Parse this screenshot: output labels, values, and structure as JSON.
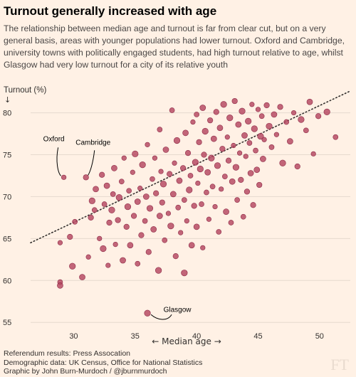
{
  "header": {
    "title": "Turnout generally increased with age",
    "subtitle": "The relationship between median age and turnout is far from clear cut, but on a very general basis, areas with younger populations had lower turnout. Oxford and Cambridge, university towns with politically engaged students, had high turnout relative to age, whilst Glasgow had very low turnout for a city of its relative youth"
  },
  "footer": {
    "line1": "Referendum results: Press Assocation",
    "line2": "Demographic data: UK Census, Office for National Statistics",
    "line3": "Graphic by John Burn-Murdoch / @jburnmurdoch"
  },
  "watermark": "FT",
  "colors": {
    "dot": "#b5465f",
    "dot_stroke": "#8e2b47",
    "grid": "#e6d9ce",
    "text": "#33302e"
  },
  "chart_data": {
    "type": "scatter",
    "xlabel": "← Median age →",
    "ylabel": "Turnout (%)",
    "ylabel_arrow": "↓",
    "xlim": [
      26.5,
      52.5
    ],
    "ylim": [
      54,
      82
    ],
    "xticks": [
      30,
      35,
      40,
      45,
      50
    ],
    "yticks": [
      55,
      60,
      65,
      70,
      75,
      80
    ],
    "grid": "horizontal",
    "trendline": {
      "x": [
        26.5,
        52.5
      ],
      "y": [
        64.5,
        82.6
      ]
    },
    "annotations": [
      {
        "label": "Oxford",
        "x": 29.2,
        "y": 72.3
      },
      {
        "label": "Cambridge",
        "x": 31.0,
        "y": 72.3
      },
      {
        "label": "Glasgow",
        "x": 36.0,
        "y": 56.1
      }
    ],
    "points": [
      [
        29.2,
        72.3
      ],
      [
        31.0,
        72.3
      ],
      [
        36.0,
        56.1
      ],
      [
        28.9,
        59.8
      ],
      [
        28.9,
        59.4
      ],
      [
        28.9,
        64.5
      ],
      [
        29.7,
        65.2
      ],
      [
        29.9,
        61.7
      ],
      [
        30.1,
        67.0
      ],
      [
        30.7,
        60.4
      ],
      [
        31.2,
        62.8
      ],
      [
        31.4,
        67.5
      ],
      [
        31.5,
        69.5
      ],
      [
        31.7,
        68.4
      ],
      [
        31.8,
        70.9
      ],
      [
        32.1,
        65.0
      ],
      [
        32.3,
        72.6
      ],
      [
        32.4,
        63.8
      ],
      [
        32.5,
        69.1
      ],
      [
        32.7,
        71.3
      ],
      [
        32.8,
        61.8
      ],
      [
        32.9,
        66.9
      ],
      [
        33.1,
        68.4
      ],
      [
        33.2,
        70.3
      ],
      [
        33.3,
        73.4
      ],
      [
        33.4,
        64.3
      ],
      [
        33.6,
        67.2
      ],
      [
        33.7,
        69.9
      ],
      [
        33.9,
        71.8
      ],
      [
        34.0,
        62.4
      ],
      [
        34.1,
        74.6
      ],
      [
        34.3,
        66.4
      ],
      [
        34.4,
        68.8
      ],
      [
        34.5,
        70.7
      ],
      [
        34.6,
        64.2
      ],
      [
        34.8,
        72.9
      ],
      [
        34.9,
        67.7
      ],
      [
        35.0,
        75.1
      ],
      [
        35.2,
        62.0
      ],
      [
        35.2,
        69.4
      ],
      [
        35.4,
        71.0
      ],
      [
        35.5,
        65.4
      ],
      [
        35.6,
        73.8
      ],
      [
        35.8,
        67.1
      ],
      [
        35.9,
        70.0
      ],
      [
        36.0,
        76.2
      ],
      [
        36.1,
        63.4
      ],
      [
        36.2,
        68.6
      ],
      [
        36.4,
        72.1
      ],
      [
        36.5,
        66.1
      ],
      [
        36.6,
        74.6
      ],
      [
        36.7,
        70.4
      ],
      [
        36.9,
        61.2
      ],
      [
        37.0,
        78.0
      ],
      [
        37.0,
        67.7
      ],
      [
        37.1,
        73.0
      ],
      [
        37.2,
        69.3
      ],
      [
        37.3,
        71.5
      ],
      [
        37.4,
        64.8
      ],
      [
        37.5,
        75.6
      ],
      [
        37.7,
        68.0
      ],
      [
        37.8,
        72.7
      ],
      [
        37.9,
        66.5
      ],
      [
        38.0,
        80.3
      ],
      [
        38.1,
        70.3
      ],
      [
        38.2,
        74.0
      ],
      [
        38.3,
        62.9
      ],
      [
        38.4,
        76.7
      ],
      [
        38.5,
        68.7
      ],
      [
        38.6,
        71.9
      ],
      [
        38.7,
        65.7
      ],
      [
        38.9,
        73.4
      ],
      [
        39.0,
        60.9
      ],
      [
        39.0,
        69.6
      ],
      [
        39.1,
        77.6
      ],
      [
        39.2,
        67.1
      ],
      [
        39.3,
        75.2
      ],
      [
        39.4,
        70.8
      ],
      [
        39.5,
        72.5
      ],
      [
        39.6,
        64.2
      ],
      [
        39.7,
        78.9
      ],
      [
        39.8,
        68.9
      ],
      [
        39.9,
        74.1
      ],
      [
        40.0,
        79.8
      ],
      [
        40.0,
        66.4
      ],
      [
        40.1,
        71.6
      ],
      [
        40.2,
        76.5
      ],
      [
        40.3,
        73.3
      ],
      [
        40.4,
        69.1
      ],
      [
        40.5,
        80.6
      ],
      [
        40.5,
        63.9
      ],
      [
        40.6,
        75.0
      ],
      [
        40.7,
        77.8
      ],
      [
        40.8,
        70.5
      ],
      [
        40.9,
        72.9
      ],
      [
        41.0,
        67.3
      ],
      [
        41.1,
        79.1
      ],
      [
        41.2,
        74.6
      ],
      [
        41.3,
        71.2
      ],
      [
        41.4,
        76.9
      ],
      [
        41.5,
        68.8
      ],
      [
        41.6,
        80.1
      ],
      [
        41.7,
        73.7
      ],
      [
        41.8,
        65.8
      ],
      [
        41.9,
        78.2
      ],
      [
        42.0,
        70.9
      ],
      [
        42.1,
        75.7
      ],
      [
        42.2,
        81.0
      ],
      [
        42.3,
        72.4
      ],
      [
        42.4,
        68.2
      ],
      [
        42.5,
        77.1
      ],
      [
        42.6,
        74.3
      ],
      [
        42.7,
        79.4
      ],
      [
        42.8,
        66.9
      ],
      [
        42.9,
        71.8
      ],
      [
        43.0,
        76.1
      ],
      [
        43.1,
        81.4
      ],
      [
        43.2,
        73.5
      ],
      [
        43.3,
        69.6
      ],
      [
        43.4,
        78.6
      ],
      [
        43.5,
        75.2
      ],
      [
        43.6,
        72.0
      ],
      [
        43.7,
        80.2
      ],
      [
        43.8,
        67.6
      ],
      [
        43.9,
        77.3
      ],
      [
        44.0,
        74.8
      ],
      [
        44.1,
        70.6
      ],
      [
        44.2,
        79.0
      ],
      [
        44.3,
        76.4
      ],
      [
        44.4,
        72.8
      ],
      [
        44.5,
        81.0
      ],
      [
        44.6,
        69.0
      ],
      [
        44.7,
        78.1
      ],
      [
        44.8,
        75.5
      ],
      [
        44.9,
        73.2
      ],
      [
        45.0,
        80.4
      ],
      [
        45.1,
        71.4
      ],
      [
        45.2,
        77.2
      ],
      [
        45.3,
        79.6
      ],
      [
        45.4,
        74.5
      ],
      [
        45.5,
        76.8
      ],
      [
        45.7,
        80.9
      ],
      [
        45.9,
        78.4
      ],
      [
        46.1,
        75.9
      ],
      [
        46.3,
        79.8
      ],
      [
        46.5,
        77.4
      ],
      [
        46.8,
        80.7
      ],
      [
        47.0,
        74.0
      ],
      [
        47.3,
        78.9
      ],
      [
        47.6,
        76.6
      ],
      [
        47.9,
        80.0
      ],
      [
        48.2,
        73.6
      ],
      [
        48.5,
        79.2
      ],
      [
        48.9,
        77.9
      ],
      [
        49.2,
        81.3
      ],
      [
        49.5,
        75.1
      ],
      [
        49.9,
        79.6
      ],
      [
        50.6,
        80.1
      ],
      [
        51.3,
        77.1
      ]
    ]
  }
}
